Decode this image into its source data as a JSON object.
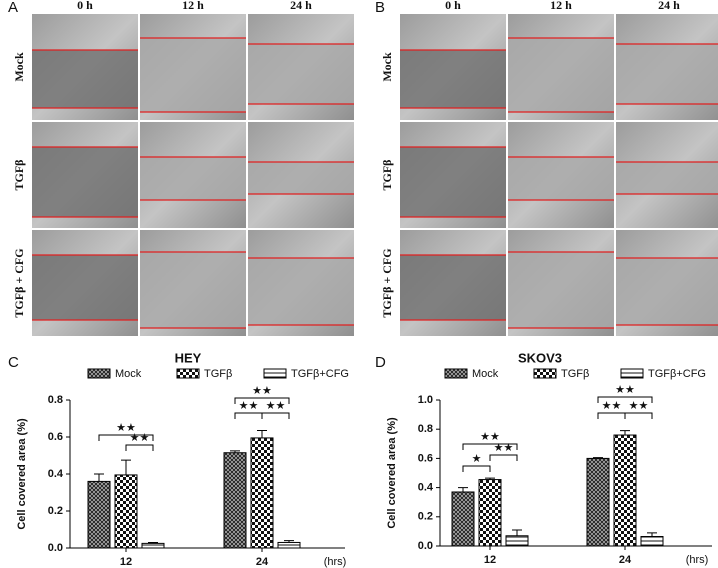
{
  "panels": [
    {
      "label": "A",
      "columns": [
        "0 h",
        "12 h",
        "24 h"
      ],
      "rows": [
        "Mock",
        "TGFβ",
        "TGFβ + CFG"
      ]
    },
    {
      "label": "B",
      "columns": [
        "0 h",
        "12 h",
        "24 h"
      ],
      "rows": [
        "Mock",
        "TGFβ",
        "TGFβ + CFG"
      ]
    }
  ],
  "chart_data": [
    {
      "type": "bar",
      "label": "C",
      "title": "HEY",
      "ylabel": "Cell covered area (%)",
      "xunit": "(hrs)",
      "categories": [
        "12",
        "24"
      ],
      "series": [
        {
          "name": "Mock",
          "pattern": "crosshatch",
          "values": [
            0.36,
            0.515
          ],
          "errors": [
            0.04,
            0.01
          ]
        },
        {
          "name": "TGFβ",
          "pattern": "checker",
          "values": [
            0.395,
            0.595
          ],
          "errors": [
            0.08,
            0.04
          ]
        },
        {
          "name": "TGFβ+CFG",
          "pattern": "hstripes",
          "values": [
            0.025,
            0.03
          ],
          "errors": [
            0.005,
            0.01
          ]
        }
      ],
      "ylim": [
        0,
        0.8
      ],
      "yticks": [
        {
          "value": 0,
          "label": "0.0"
        },
        0.2,
        0.4,
        0.6,
        0.8
      ],
      "annotations": [
        "★★",
        "★★",
        "★★",
        "★★",
        "★★"
      ]
    },
    {
      "type": "bar",
      "label": "D",
      "title": "SKOV3",
      "ylabel": "Cell covered area (%)",
      "xunit": "(hrs)",
      "categories": [
        "12",
        "24"
      ],
      "series": [
        {
          "name": "Mock",
          "pattern": "crosshatch",
          "values": [
            0.37,
            0.6
          ],
          "errors": [
            0.03,
            0.005
          ]
        },
        {
          "name": "TGFβ",
          "pattern": "checker",
          "values": [
            0.455,
            0.76
          ],
          "errors": [
            0.01,
            0.03
          ]
        },
        {
          "name": "TGFβ+CFG",
          "pattern": "hstripes",
          "values": [
            0.07,
            0.065
          ],
          "errors": [
            0.04,
            0.025
          ]
        }
      ],
      "ylim": [
        0,
        1
      ],
      "yticks": [
        {
          "value": 0,
          "label": "0.0"
        },
        0.2,
        0.4,
        0.6,
        0.8,
        {
          "value": 1,
          "label": "1.0"
        }
      ],
      "annotations": [
        "★",
        "★★",
        "★★",
        "★★",
        "★★",
        "★★"
      ]
    }
  ]
}
